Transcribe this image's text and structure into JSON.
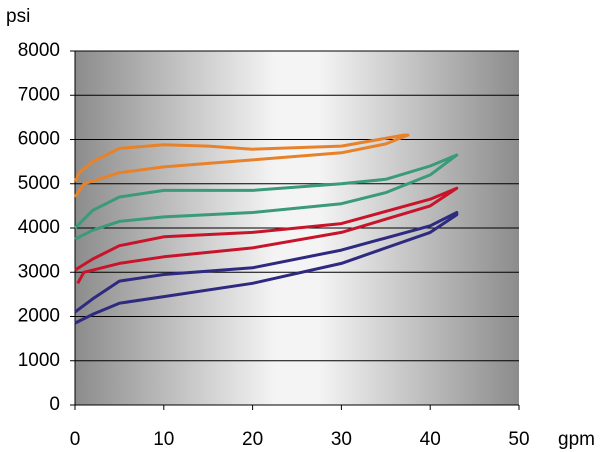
{
  "chart_data": {
    "type": "line",
    "y_label": "psi",
    "x_label": "gpm",
    "xlim": [
      0,
      50
    ],
    "xticks": [
      0,
      10,
      20,
      30,
      40,
      50
    ],
    "ylim": [
      0,
      8000
    ],
    "yticks": [
      0,
      1000,
      2000,
      3000,
      4000,
      5000,
      6000,
      7000,
      8000
    ],
    "grid": true,
    "series": [
      {
        "color": "#e8822a",
        "x": [
          0,
          1,
          5,
          10,
          20,
          30,
          35,
          37.5,
          37,
          30,
          20,
          15,
          10,
          5,
          2,
          0.5,
          0
        ],
        "values": [
          4700,
          5000,
          5250,
          5380,
          5540,
          5700,
          5900,
          6100,
          6100,
          5850,
          5780,
          5850,
          5880,
          5800,
          5500,
          5250,
          5050
        ]
      },
      {
        "color": "#3a9a7a",
        "x": [
          0,
          2,
          5,
          10,
          20,
          30,
          35,
          40,
          43,
          43,
          40,
          35,
          30,
          20,
          10,
          5,
          2,
          0
        ],
        "values": [
          3750,
          3950,
          4150,
          4250,
          4350,
          4550,
          4800,
          5200,
          5650,
          5650,
          5400,
          5100,
          5000,
          4850,
          4850,
          4700,
          4400,
          4000
        ]
      },
      {
        "color": "#c8142a",
        "x": [
          0.3,
          1,
          5,
          10,
          20,
          30,
          40,
          43,
          43,
          40,
          30,
          20,
          10,
          5,
          2,
          0
        ],
        "values": [
          2750,
          3000,
          3200,
          3350,
          3550,
          3900,
          4500,
          4900,
          4900,
          4650,
          4100,
          3900,
          3800,
          3600,
          3300,
          3050
        ]
      },
      {
        "color": "#2d2a80",
        "x": [
          0,
          2,
          5,
          10,
          20,
          30,
          40,
          43,
          43,
          40,
          30,
          20,
          10,
          5,
          2,
          0
        ],
        "values": [
          1850,
          2050,
          2300,
          2450,
          2750,
          3200,
          3900,
          4300,
          4350,
          4050,
          3500,
          3100,
          2950,
          2800,
          2400,
          2100
        ]
      }
    ]
  }
}
